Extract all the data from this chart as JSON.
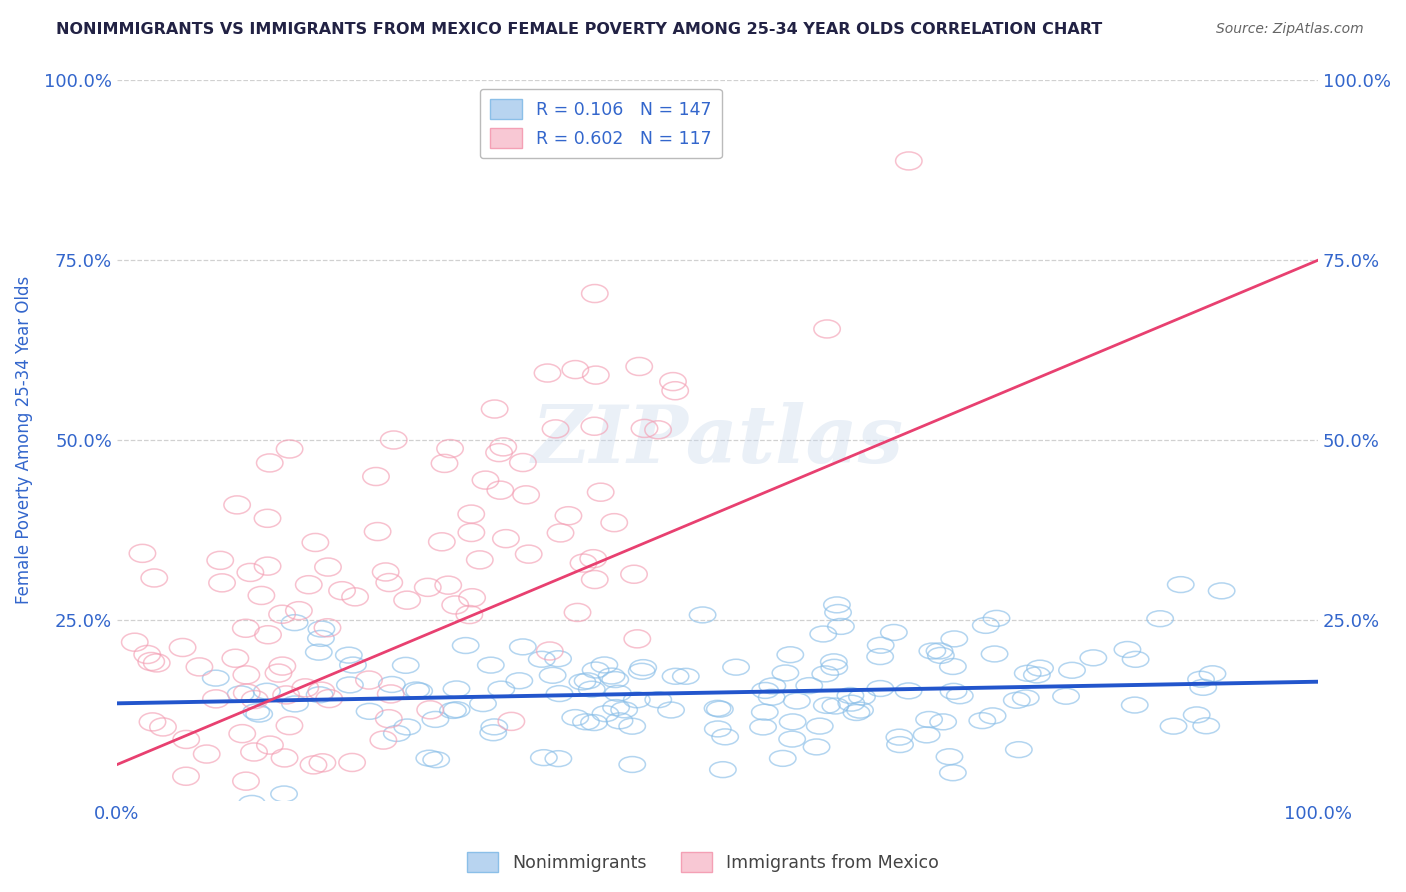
{
  "title": "NONIMMIGRANTS VS IMMIGRANTS FROM MEXICO FEMALE POVERTY AMONG 25-34 YEAR OLDS CORRELATION CHART",
  "source": "Source: ZipAtlas.com",
  "ylabel": "Female Poverty Among 25-34 Year Olds",
  "xlim": [
    0,
    1
  ],
  "ylim": [
    0,
    1
  ],
  "xtick_labels": [
    "0.0%",
    "100.0%"
  ],
  "ytick_labels": [
    "25.0%",
    "50.0%",
    "75.0%",
    "100.0%"
  ],
  "ytick_values": [
    0.25,
    0.5,
    0.75,
    1.0
  ],
  "watermark_text": "ZIPatlas",
  "legend_label1": "R = 0.106   N = 147",
  "legend_label2": "R = 0.602   N = 117",
  "series1_color": "#8bbfe8",
  "series2_color": "#f4a0b5",
  "line1_color": "#2255cc",
  "line2_color": "#e84070",
  "title_color": "#222244",
  "source_color": "#666666",
  "axis_label_color": "#3366cc",
  "tick_label_color": "#3366cc",
  "background_color": "#ffffff",
  "grid_color": "#cccccc",
  "R1": 0.106,
  "N1": 147,
  "R2": 0.602,
  "N2": 117,
  "seed1": 42,
  "seed2": 7,
  "line1_x0": 0.0,
  "line1_y0": 0.135,
  "line1_x1": 1.0,
  "line1_y1": 0.165,
  "line2_x0": 0.0,
  "line2_y0": 0.05,
  "line2_x1": 1.0,
  "line2_y1": 0.75
}
